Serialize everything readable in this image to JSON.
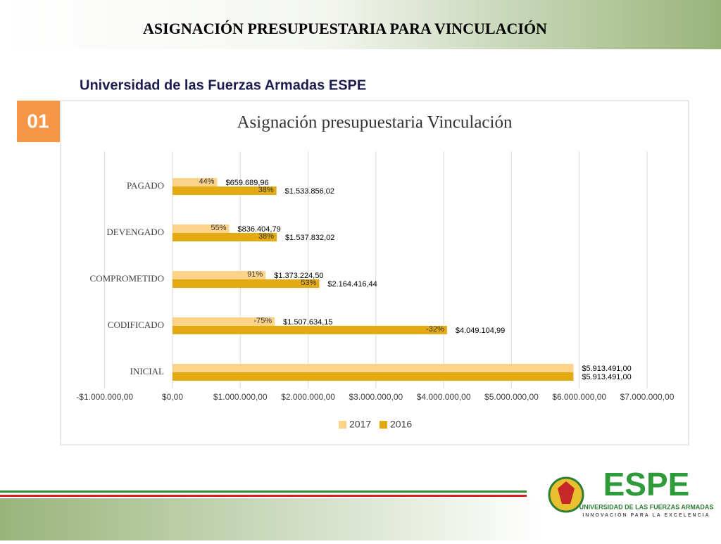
{
  "header": {
    "title": "ASIGNACIÓN PRESUPUESTARIA PARA VINCULACIÓN",
    "subtitle": "Universidad de las Fuerzas Armadas ESPE",
    "badge": "01"
  },
  "logo": {
    "name": "ESPE",
    "line1": "UNIVERSIDAD DE LAS FUERZAS ARMADAS",
    "line2": "INNOVACIÓN PARA LA EXCELENCIA"
  },
  "chart_data": {
    "type": "hbar",
    "title": "Asignación presupuestaria Vinculación",
    "categories": [
      "PAGADO",
      "DEVENGADO",
      "COMPROMETIDO",
      "CODIFICADO",
      "INICIAL"
    ],
    "series": [
      {
        "name": "2017",
        "color": "#fdd38a",
        "values": [
          659689.96,
          836404.79,
          1373224.5,
          1507634.15,
          5913491.0
        ],
        "value_labels": [
          "$659.689,96",
          "$836.404,79",
          "$1.373.224,50",
          "$1.507.634,15",
          "$5.913.491,00"
        ],
        "percent_labels": [
          "44%",
          "55%",
          "91%",
          "-75%",
          null
        ]
      },
      {
        "name": "2016",
        "color": "#e4aa12",
        "values": [
          1533856.02,
          1537832.02,
          2164416.44,
          4049104.99,
          5913491.0
        ],
        "value_labels": [
          "$1.533.856,02",
          "$1.537.832,02",
          "$2.164.416,44",
          "$4.049.104,99",
          "$5.913.491,00"
        ],
        "percent_labels": [
          "38%",
          "38%",
          "53%",
          "-32%",
          null
        ]
      }
    ],
    "xlim": [
      -1000000,
      7000000
    ],
    "xticks": [
      {
        "value": -1000000,
        "label": "-$1.000.000,00"
      },
      {
        "value": 0,
        "label": "$0,00"
      },
      {
        "value": 1000000,
        "label": "$1.000.000,00"
      },
      {
        "value": 2000000,
        "label": "$2.000.000,00"
      },
      {
        "value": 3000000,
        "label": "$3.000.000,00"
      },
      {
        "value": 4000000,
        "label": "$4.000.000,00"
      },
      {
        "value": 5000000,
        "label": "$5.000.000,00"
      },
      {
        "value": 6000000,
        "label": "$6.000.000,00"
      },
      {
        "value": 7000000,
        "label": "$7.000.000,00"
      }
    ],
    "grid": true,
    "legend": "bottom"
  }
}
